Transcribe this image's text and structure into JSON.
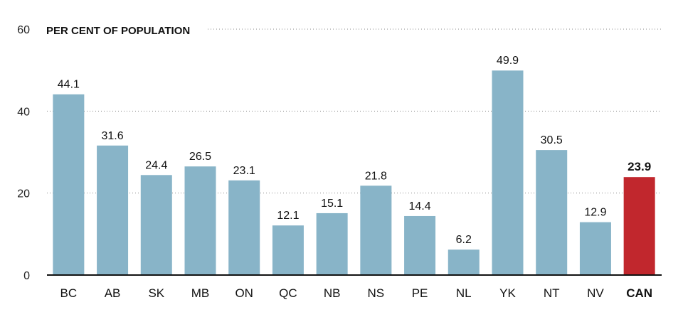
{
  "chart_data": {
    "type": "bar",
    "ylabel": "PER CENT OF POPULATION",
    "ylim": [
      0,
      60
    ],
    "yticks": [
      0,
      20,
      40,
      60
    ],
    "grid": true,
    "categories": [
      "BC",
      "AB",
      "SK",
      "MB",
      "ON",
      "QC",
      "NB",
      "NS",
      "PE",
      "NL",
      "YK",
      "NT",
      "NV",
      "CAN"
    ],
    "values": [
      44.1,
      31.6,
      24.4,
      26.5,
      23.1,
      12.1,
      15.1,
      21.8,
      14.4,
      6.2,
      49.9,
      30.5,
      12.9,
      23.9
    ],
    "highlight_category": "CAN",
    "colors": {
      "bar": "#88b4c8",
      "highlight": "#c1272d"
    }
  }
}
